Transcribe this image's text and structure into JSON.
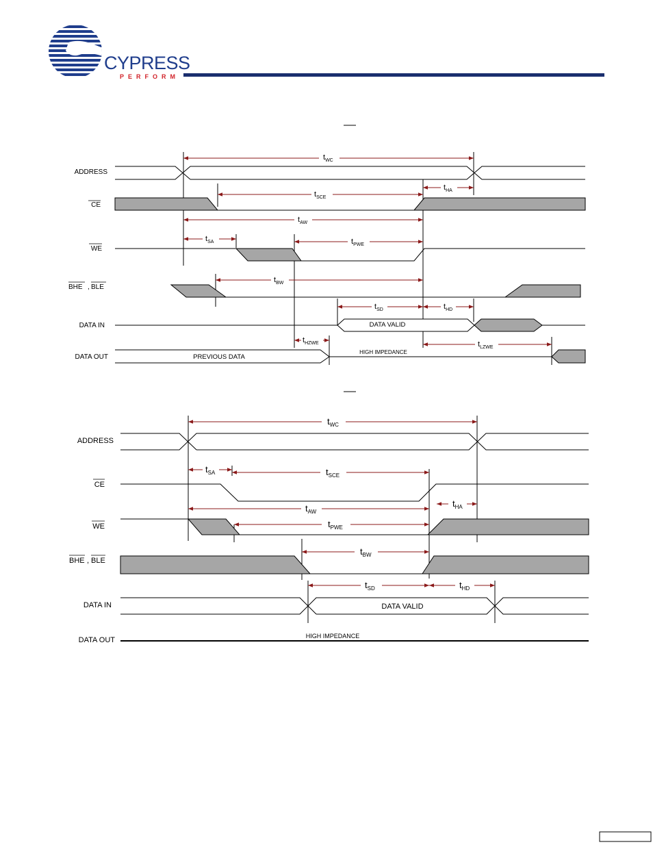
{
  "header": {
    "logo_word": "CYPRESS",
    "logo_tagline": "PERFORM",
    "rule_color": "#1a2e6e",
    "brand_color": "#1f3d8c",
    "tagline_color": "#d2232a"
  },
  "diagram1": {
    "signals": {
      "address": "ADDRESS",
      "ce": "CE",
      "we": "WE",
      "bhe": "BHE",
      "ble": "BLE",
      "sep": ",",
      "data_in": "DATA IN",
      "data_out": "DATA OUT"
    },
    "timings": {
      "twc": {
        "t": "t",
        "sub": "WC"
      },
      "tsce": {
        "t": "t",
        "sub": "SCE"
      },
      "tha": {
        "t": "t",
        "sub": "HA"
      },
      "taw": {
        "t": "t",
        "sub": "AW"
      },
      "tsa": {
        "t": "t",
        "sub": "SA"
      },
      "tpwe": {
        "t": "t",
        "sub": "PWE"
      },
      "tbw": {
        "t": "t",
        "sub": "BW"
      },
      "tsd": {
        "t": "t",
        "sub": "SD"
      },
      "thd": {
        "t": "t",
        "sub": "HD"
      },
      "thzwe": {
        "t": "t",
        "sub": "HZWE"
      },
      "tlzwe": {
        "t": "t",
        "sub": "LZWE"
      }
    },
    "annotations": {
      "data_valid": "DATA VALID",
      "previous_data": "PREVIOUS DATA",
      "high_impedance": "HIGH IMPEDANCE"
    }
  },
  "diagram2": {
    "signals": {
      "address": "ADDRESS",
      "ce": "CE",
      "we": "WE",
      "bhe": "BHE",
      "ble": "BLE",
      "sep": ",",
      "data_in": "DATA IN",
      "data_out": "DATA OUT"
    },
    "timings": {
      "twc": {
        "t": "t",
        "sub": "WC"
      },
      "tsa": {
        "t": "t",
        "sub": "SA"
      },
      "tsce": {
        "t": "t",
        "sub": "SCE"
      },
      "taw": {
        "t": "t",
        "sub": "AW"
      },
      "tha": {
        "t": "t",
        "sub": "HA"
      },
      "tpwe": {
        "t": "t",
        "sub": "PWE"
      },
      "tbw": {
        "t": "t",
        "sub": "BW"
      },
      "tsd": {
        "t": "t",
        "sub": "SD"
      },
      "thd": {
        "t": "t",
        "sub": "HD"
      }
    },
    "annotations": {
      "data_valid": "DATA VALID",
      "high_impedance": "HIGH IMPEDANCE"
    }
  },
  "colors": {
    "waveform": "#000000",
    "fill_gray": "#a6a6a6",
    "arrow": "#8b1a1a"
  }
}
